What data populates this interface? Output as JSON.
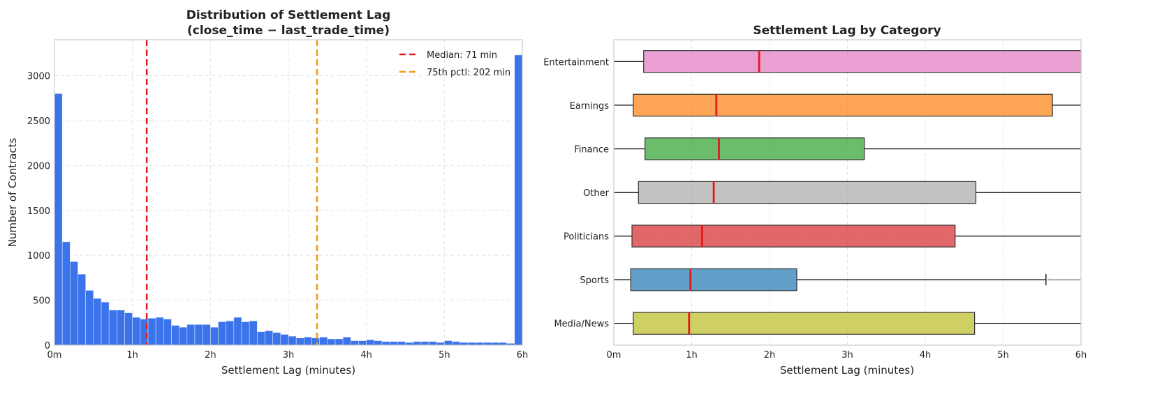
{
  "chart_data": [
    {
      "type": "bar",
      "title": "Distribution of Settlement Lag\n(close_time − last_trade_time)",
      "title_lines": [
        "Distribution of Settlement Lag",
        "(close_time − last_trade_time)"
      ],
      "xlabel": "Settlement Lag (minutes)",
      "ylabel": "Number of Contracts",
      "xlim": [
        0,
        360
      ],
      "ylim": [
        0,
        3400
      ],
      "xticks": [
        {
          "v": 0,
          "label": "0m"
        },
        {
          "v": 60,
          "label": "1h"
        },
        {
          "v": 120,
          "label": "2h"
        },
        {
          "v": 180,
          "label": "3h"
        },
        {
          "v": 240,
          "label": "4h"
        },
        {
          "v": 300,
          "label": "5h"
        },
        {
          "v": 360,
          "label": "6h"
        }
      ],
      "yticks": [
        0,
        500,
        1000,
        1500,
        2000,
        2500,
        3000
      ],
      "bin_width": 6,
      "values": [
        2800,
        1150,
        930,
        790,
        610,
        520,
        480,
        390,
        390,
        360,
        310,
        290,
        300,
        310,
        290,
        220,
        200,
        230,
        230,
        230,
        200,
        260,
        270,
        310,
        260,
        270,
        150,
        160,
        140,
        120,
        100,
        80,
        90,
        80,
        90,
        70,
        70,
        90,
        50,
        50,
        60,
        50,
        40,
        40,
        40,
        30,
        40,
        40,
        40,
        30,
        50,
        40,
        30,
        30,
        30,
        30,
        30,
        30,
        20,
        3230
      ],
      "bar_color": "#3b73ea",
      "lines": [
        {
          "label": "Median: 71 min",
          "x": 71,
          "color": "#e31a1c"
        },
        {
          "label": "75th pctl: 202 min",
          "x": 202,
          "color": "#f39c12"
        }
      ],
      "legend": "top-right",
      "grid": true
    },
    {
      "type": "boxplot",
      "title": "Settlement Lag by Category",
      "xlabel": "Settlement Lag (minutes)",
      "xlim": [
        0,
        360
      ],
      "xticks": [
        {
          "v": 0,
          "label": "0m"
        },
        {
          "v": 60,
          "label": "1h"
        },
        {
          "v": 120,
          "label": "2h"
        },
        {
          "v": 180,
          "label": "3h"
        },
        {
          "v": 240,
          "label": "4h"
        },
        {
          "v": 300,
          "label": "5h"
        },
        {
          "v": 360,
          "label": "6h"
        }
      ],
      "categories": [
        {
          "name": "Entertainment",
          "q1": 23,
          "median": 112,
          "q3": 400,
          "whislo": 0,
          "whishi": 400,
          "color": "#e377c2"
        },
        {
          "name": "Earnings",
          "q1": 15,
          "median": 79,
          "q3": 338,
          "whislo": 0,
          "whishi": 400,
          "color": "#ff7f0e"
        },
        {
          "name": "Finance",
          "q1": 24,
          "median": 81,
          "q3": 193,
          "whislo": 0,
          "whishi": 400,
          "color": "#2ca02c"
        },
        {
          "name": "Other",
          "q1": 19,
          "median": 77,
          "q3": 279,
          "whislo": 0,
          "whishi": 400,
          "color": "#a8a8a8"
        },
        {
          "name": "Politicians",
          "q1": 14,
          "median": 68,
          "q3": 263,
          "whislo": 0,
          "whishi": 400,
          "color": "#d62728"
        },
        {
          "name": "Sports",
          "q1": 13,
          "median": 59,
          "q3": 141,
          "whislo": 0,
          "whishi": 333,
          "fliers_from": 335,
          "color": "#1f77b4"
        },
        {
          "name": "Media/News",
          "q1": 15,
          "median": 58,
          "q3": 278,
          "whislo": 0,
          "whishi": 400,
          "color": "#bcbd22"
        }
      ],
      "grid": true
    }
  ]
}
